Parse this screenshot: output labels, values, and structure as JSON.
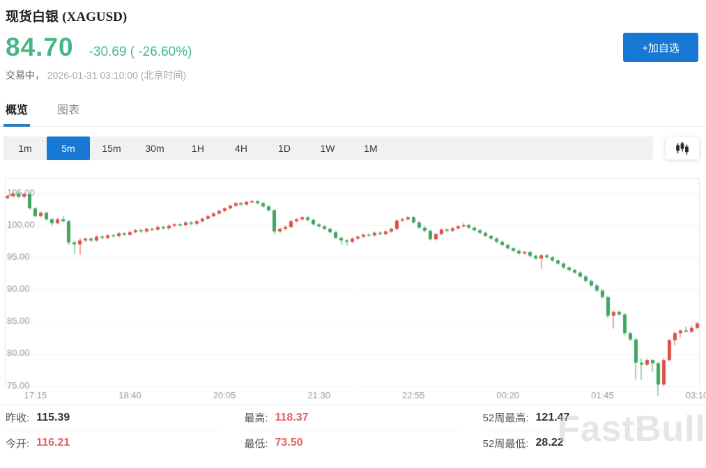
{
  "header": {
    "title_cn": "现货白银",
    "title_symbol": "(XAGUSD)",
    "price": "84.70",
    "change": "-30.69 ( -26.60%)",
    "status_label": "交易中，",
    "timestamp": "2026-01-31 03:10:00 (北京时间)",
    "add_watchlist_button": "+加自选"
  },
  "tabs": [
    {
      "label": "概览"
    },
    {
      "label": "图表"
    }
  ],
  "timeframes": {
    "items": [
      "1m",
      "5m",
      "15m",
      "30m",
      "1H",
      "4H",
      "1D",
      "1W",
      "1M"
    ],
    "active": "5m"
  },
  "icons": {
    "chart_type": "candlestick-chart-icon"
  },
  "colors": {
    "accent_blue": "#1678d3",
    "tab_underline_blue": "#2b7cba",
    "price_green": "#45b786",
    "stat_red": "#e36060",
    "candle_up_red": "#da5046",
    "candle_down_green": "#3fa55f"
  },
  "stats": {
    "columns": [
      {
        "rows": [
          {
            "label": "昨收:",
            "value": "115.39",
            "tone": "dark"
          },
          {
            "label": "今开:",
            "value": "116.21",
            "tone": "red"
          }
        ]
      },
      {
        "rows": [
          {
            "label": "最高:",
            "value": "118.37",
            "tone": "red"
          },
          {
            "label": "最低:",
            "value": "73.50",
            "tone": "red"
          }
        ]
      },
      {
        "rows": [
          {
            "label": "52周最高:",
            "value": "121.47",
            "tone": "dark"
          },
          {
            "label": "52周最低:",
            "value": "28.22",
            "tone": "dark"
          }
        ]
      }
    ]
  },
  "watermark": "FastBull",
  "chart_data": {
    "type": "candlestick",
    "symbol": "XAGUSD",
    "interval": "5m",
    "start_time": "16:50",
    "interval_min": 5,
    "ylim": [
      75,
      105
    ],
    "grid": true,
    "y_ticks": [
      105,
      100,
      95,
      90,
      85,
      80,
      75
    ],
    "x_ticks": [
      {
        "index": 5,
        "label": "17:15"
      },
      {
        "index": 22,
        "label": "18:40"
      },
      {
        "index": 39,
        "label": "20:05"
      },
      {
        "index": 56,
        "label": "21:30"
      },
      {
        "index": 73,
        "label": "22:55"
      },
      {
        "index": 90,
        "label": "00:20"
      },
      {
        "index": 107,
        "label": "01:45"
      },
      {
        "index": 124,
        "label": "03:10"
      }
    ],
    "colors": {
      "up": "#da5046",
      "down": "#3fa55f",
      "grid": "#f1f1f1",
      "spine": "#e4e4e4",
      "tick_text": "#999999"
    },
    "candles": [
      [
        104.2,
        104.7,
        104.0,
        104.5
      ],
      [
        104.5,
        105.2,
        104.3,
        104.9
      ],
      [
        104.9,
        105.1,
        104.2,
        104.4
      ],
      [
        104.4,
        105.0,
        104.2,
        104.8
      ],
      [
        104.8,
        105.0,
        102.4,
        102.6
      ],
      [
        102.6,
        102.8,
        101.2,
        101.4
      ],
      [
        101.4,
        102.1,
        101.2,
        101.9
      ],
      [
        101.9,
        102.1,
        100.7,
        100.9
      ],
      [
        100.9,
        101.1,
        99.9,
        100.3
      ],
      [
        100.3,
        101.1,
        100.1,
        100.9
      ],
      [
        100.9,
        101.4,
        100.4,
        100.6
      ],
      [
        100.6,
        100.8,
        96.9,
        97.3
      ],
      [
        97.3,
        97.6,
        95.5,
        97.0
      ],
      [
        97.0,
        98.0,
        95.4,
        97.6
      ],
      [
        97.6,
        98.1,
        97.4,
        97.9
      ],
      [
        97.9,
        98.1,
        97.4,
        97.6
      ],
      [
        97.6,
        98.4,
        97.4,
        98.2
      ],
      [
        98.2,
        98.4,
        97.8,
        98.0
      ],
      [
        98.0,
        98.6,
        97.8,
        98.4
      ],
      [
        98.4,
        98.6,
        98.1,
        98.3
      ],
      [
        98.3,
        98.9,
        98.1,
        98.7
      ],
      [
        98.7,
        98.9,
        98.3,
        98.5
      ],
      [
        98.5,
        99.1,
        98.3,
        98.9
      ],
      [
        98.9,
        99.4,
        98.7,
        99.2
      ],
      [
        99.2,
        99.4,
        98.8,
        99.0
      ],
      [
        99.0,
        99.6,
        98.8,
        99.4
      ],
      [
        99.4,
        99.6,
        99.1,
        99.3
      ],
      [
        99.3,
        99.9,
        99.1,
        99.7
      ],
      [
        99.7,
        99.9,
        99.3,
        99.5
      ],
      [
        99.5,
        100.1,
        99.3,
        99.9
      ],
      [
        99.9,
        100.3,
        99.7,
        100.1
      ],
      [
        100.1,
        100.3,
        99.8,
        100.0
      ],
      [
        100.0,
        100.6,
        99.8,
        100.4
      ],
      [
        100.4,
        100.6,
        100.0,
        100.2
      ],
      [
        100.2,
        100.8,
        100.0,
        100.6
      ],
      [
        100.6,
        101.2,
        100.4,
        101.0
      ],
      [
        101.0,
        101.6,
        100.8,
        101.4
      ],
      [
        101.4,
        102.0,
        101.2,
        101.8
      ],
      [
        101.8,
        102.4,
        101.6,
        102.2
      ],
      [
        102.2,
        102.8,
        102.0,
        102.6
      ],
      [
        102.6,
        103.2,
        102.4,
        103.0
      ],
      [
        103.0,
        103.6,
        102.8,
        103.4
      ],
      [
        103.4,
        103.6,
        103.0,
        103.2
      ],
      [
        103.2,
        103.8,
        103.0,
        103.6
      ],
      [
        103.6,
        103.9,
        103.4,
        103.7
      ],
      [
        103.7,
        103.9,
        103.2,
        103.4
      ],
      [
        103.4,
        103.6,
        102.7,
        102.9
      ],
      [
        102.9,
        103.1,
        102.1,
        102.3
      ],
      [
        102.3,
        102.5,
        98.6,
        99.0
      ],
      [
        99.0,
        99.6,
        98.8,
        99.4
      ],
      [
        99.4,
        99.9,
        99.2,
        99.7
      ],
      [
        99.7,
        100.8,
        99.5,
        100.6
      ],
      [
        100.6,
        101.1,
        100.4,
        100.9
      ],
      [
        100.9,
        101.4,
        100.7,
        101.2
      ],
      [
        101.2,
        101.4,
        100.6,
        100.8
      ],
      [
        100.8,
        101.0,
        99.9,
        100.1
      ],
      [
        100.1,
        100.3,
        99.6,
        99.8
      ],
      [
        99.8,
        100.0,
        99.2,
        99.4
      ],
      [
        99.4,
        99.6,
        98.7,
        98.9
      ],
      [
        98.9,
        99.1,
        97.8,
        98.0
      ],
      [
        98.0,
        98.2,
        96.9,
        97.6
      ],
      [
        97.6,
        97.8,
        96.8,
        97.4
      ],
      [
        97.4,
        98.1,
        97.2,
        97.9
      ],
      [
        97.9,
        98.4,
        97.7,
        98.2
      ],
      [
        98.2,
        98.7,
        98.0,
        98.5
      ],
      [
        98.5,
        98.7,
        98.2,
        98.4
      ],
      [
        98.4,
        99.0,
        98.2,
        98.8
      ],
      [
        98.8,
        99.0,
        98.4,
        98.6
      ],
      [
        98.6,
        99.2,
        98.4,
        99.0
      ],
      [
        99.0,
        99.6,
        98.8,
        99.4
      ],
      [
        99.4,
        100.9,
        99.2,
        100.7
      ],
      [
        100.7,
        101.1,
        100.5,
        100.9
      ],
      [
        100.9,
        101.4,
        100.7,
        101.2
      ],
      [
        101.2,
        101.4,
        100.2,
        100.4
      ],
      [
        100.4,
        100.6,
        99.4,
        99.6
      ],
      [
        99.6,
        99.8,
        98.9,
        99.1
      ],
      [
        99.1,
        99.3,
        97.6,
        97.8
      ],
      [
        97.8,
        98.8,
        97.6,
        98.6
      ],
      [
        98.6,
        99.5,
        98.4,
        99.3
      ],
      [
        99.3,
        99.5,
        98.9,
        99.1
      ],
      [
        99.1,
        99.7,
        98.9,
        99.5
      ],
      [
        99.5,
        100.0,
        99.3,
        99.8
      ],
      [
        99.8,
        100.3,
        99.6,
        100.0
      ],
      [
        100.0,
        100.2,
        99.4,
        99.6
      ],
      [
        99.6,
        99.8,
        99.0,
        99.2
      ],
      [
        99.2,
        99.4,
        98.6,
        98.8
      ],
      [
        98.8,
        99.0,
        98.1,
        98.3
      ],
      [
        98.3,
        98.5,
        97.7,
        97.9
      ],
      [
        97.9,
        98.1,
        97.2,
        97.4
      ],
      [
        97.4,
        97.6,
        96.7,
        96.9
      ],
      [
        96.9,
        97.1,
        96.2,
        96.4
      ],
      [
        96.4,
        96.6,
        95.8,
        96.0
      ],
      [
        96.0,
        96.2,
        95.4,
        95.6
      ],
      [
        95.6,
        96.0,
        95.4,
        95.8
      ],
      [
        95.8,
        96.0,
        95.0,
        95.2
      ],
      [
        95.2,
        95.4,
        94.6,
        94.8
      ],
      [
        94.8,
        95.5,
        93.2,
        95.3
      ],
      [
        95.3,
        95.5,
        94.8,
        95.0
      ],
      [
        95.0,
        95.2,
        94.3,
        94.5
      ],
      [
        94.5,
        94.7,
        93.8,
        94.0
      ],
      [
        94.0,
        94.2,
        93.2,
        93.4
      ],
      [
        93.4,
        93.6,
        92.8,
        93.0
      ],
      [
        93.0,
        93.2,
        92.4,
        92.6
      ],
      [
        92.6,
        92.8,
        91.8,
        92.0
      ],
      [
        92.0,
        92.2,
        91.1,
        91.3
      ],
      [
        91.3,
        91.5,
        90.4,
        90.6
      ],
      [
        90.6,
        90.8,
        89.6,
        89.8
      ],
      [
        89.8,
        90.0,
        88.6,
        88.8
      ],
      [
        88.8,
        89.0,
        85.5,
        85.9
      ],
      [
        85.9,
        86.7,
        83.9,
        86.5
      ],
      [
        86.5,
        86.7,
        85.9,
        86.1
      ],
      [
        86.1,
        86.3,
        82.8,
        83.2
      ],
      [
        83.2,
        83.4,
        82.0,
        82.2
      ],
      [
        82.2,
        82.4,
        76.0,
        78.6
      ],
      [
        78.6,
        79.3,
        75.9,
        78.3
      ],
      [
        78.3,
        79.2,
        78.1,
        79.0
      ],
      [
        79.0,
        79.2,
        77.2,
        78.5
      ],
      [
        78.5,
        78.7,
        73.5,
        75.2
      ],
      [
        75.2,
        79.3,
        75.0,
        79.0
      ],
      [
        79.0,
        82.3,
        78.8,
        82.1
      ],
      [
        82.1,
        83.4,
        81.3,
        83.2
      ],
      [
        83.2,
        83.8,
        82.5,
        83.6
      ],
      [
        83.6,
        84.2,
        83.3,
        83.4
      ],
      [
        83.4,
        84.4,
        83.2,
        84.0
      ],
      [
        84.0,
        84.9,
        83.8,
        84.7
      ]
    ]
  }
}
